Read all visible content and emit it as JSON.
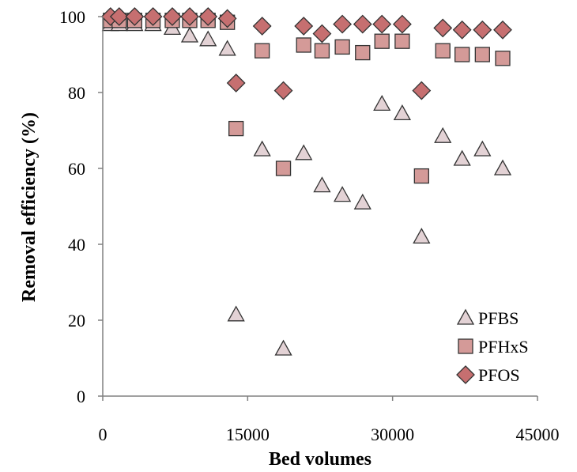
{
  "chart_data": {
    "type": "scatter",
    "xlabel": "Bed volumes",
    "ylabel": "Removal efficiency (%)",
    "xlim": [
      0,
      45000
    ],
    "ylim": [
      0,
      100
    ],
    "xticks": [
      0,
      15000,
      30000,
      45000
    ],
    "yticks": [
      0,
      20,
      40,
      60,
      80,
      100
    ],
    "grid": false,
    "legend_position": "bottom-right",
    "series": [
      {
        "name": "PFBS",
        "marker": "triangle",
        "color": "#e3d2d5",
        "points": [
          [
            800,
            98
          ],
          [
            1700,
            98
          ],
          [
            3300,
            98
          ],
          [
            5200,
            98
          ],
          [
            7200,
            97
          ],
          [
            9000,
            95
          ],
          [
            10900,
            94
          ],
          [
            12900,
            91.5
          ],
          [
            13800,
            21.5
          ],
          [
            16500,
            65
          ],
          [
            18700,
            12.5
          ],
          [
            20800,
            64
          ],
          [
            22700,
            55.5
          ],
          [
            24800,
            53
          ],
          [
            26900,
            51
          ],
          [
            28900,
            77
          ],
          [
            31000,
            74.5
          ],
          [
            33000,
            42
          ],
          [
            35200,
            68.5
          ],
          [
            37200,
            62.5
          ],
          [
            39300,
            65
          ],
          [
            41400,
            60
          ]
        ]
      },
      {
        "name": "PFHxS",
        "marker": "square",
        "color": "#d49a98",
        "points": [
          [
            800,
            99
          ],
          [
            1700,
            99
          ],
          [
            3300,
            99
          ],
          [
            5200,
            99
          ],
          [
            7200,
            99
          ],
          [
            9000,
            99
          ],
          [
            10900,
            99
          ],
          [
            12900,
            98.5
          ],
          [
            13800,
            70.5
          ],
          [
            16500,
            91
          ],
          [
            18700,
            60
          ],
          [
            20800,
            92.5
          ],
          [
            22700,
            91
          ],
          [
            24800,
            92
          ],
          [
            26900,
            90.5
          ],
          [
            28900,
            93.5
          ],
          [
            31000,
            93.5
          ],
          [
            33000,
            58
          ],
          [
            35200,
            91
          ],
          [
            37200,
            90
          ],
          [
            39300,
            90
          ],
          [
            41400,
            89
          ]
        ]
      },
      {
        "name": "PFOS",
        "marker": "diamond",
        "color": "#c66f70",
        "points": [
          [
            800,
            100
          ],
          [
            1700,
            100
          ],
          [
            3300,
            100
          ],
          [
            5200,
            100
          ],
          [
            7200,
            100
          ],
          [
            9000,
            100
          ],
          [
            10900,
            100
          ],
          [
            12900,
            99.5
          ],
          [
            13800,
            82.5
          ],
          [
            16500,
            97.5
          ],
          [
            18700,
            80.5
          ],
          [
            20800,
            97.5
          ],
          [
            22700,
            95.5
          ],
          [
            24800,
            98
          ],
          [
            26900,
            98
          ],
          [
            28900,
            98
          ],
          [
            31000,
            98
          ],
          [
            33000,
            80.5
          ],
          [
            35200,
            97
          ],
          [
            37200,
            96.5
          ],
          [
            39300,
            96.5
          ],
          [
            41400,
            96.5
          ]
        ]
      }
    ]
  }
}
